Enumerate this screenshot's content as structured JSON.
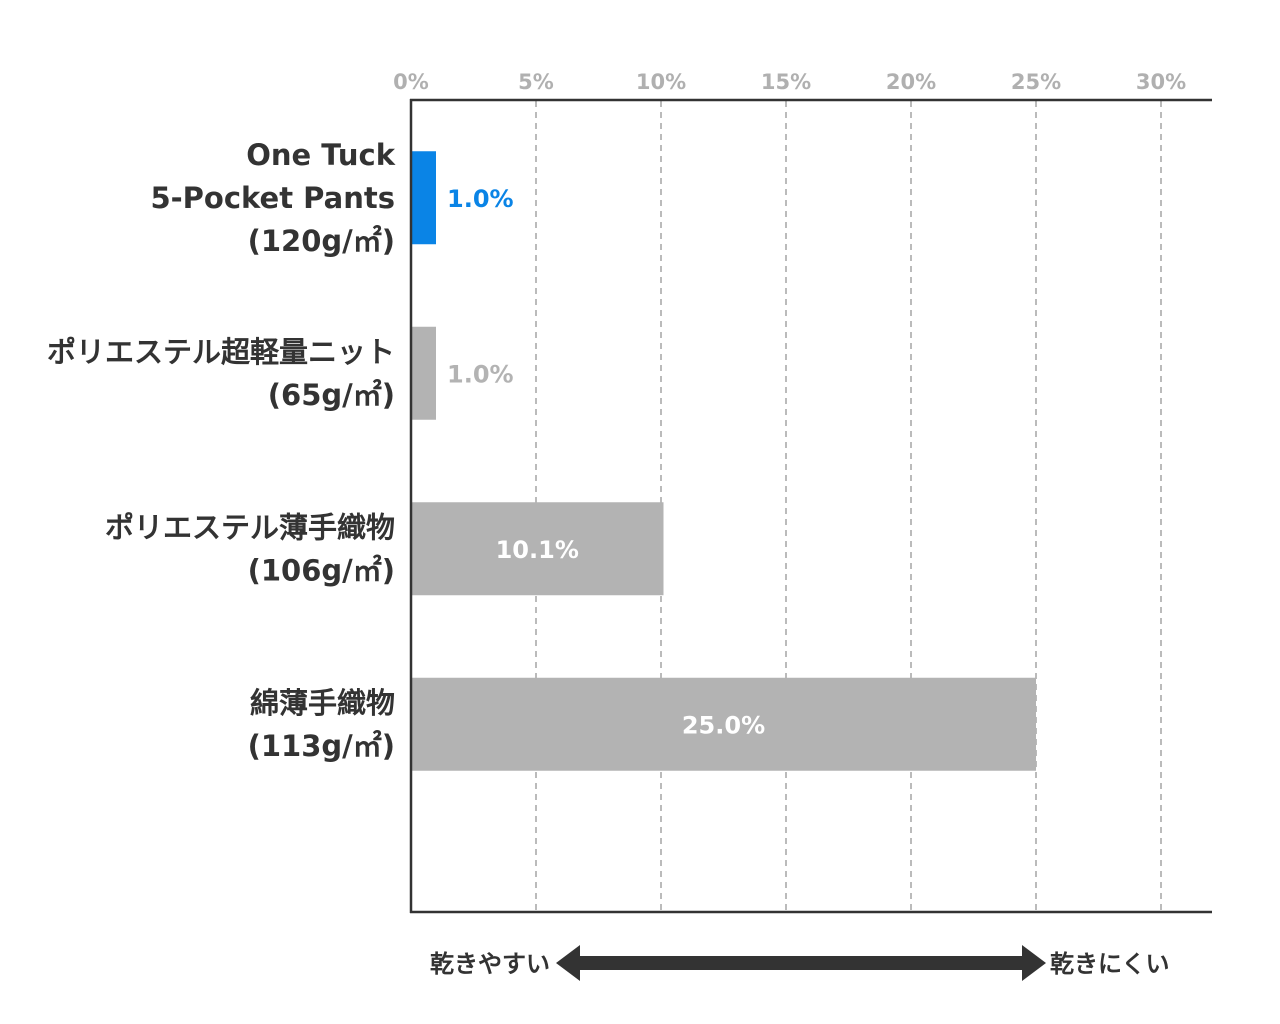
{
  "chart_data": {
    "type": "bar",
    "orientation": "horizontal",
    "categories": [
      {
        "lines": [
          "One Tuck",
          "5-Pocket Pants",
          "(120g/㎡)"
        ],
        "highlight": true
      },
      {
        "lines": [
          "ポリエステル超軽量ニット",
          "(65g/㎡)"
        ],
        "highlight": false
      },
      {
        "lines": [
          "ポリエステル薄手織物",
          "(106g/㎡)"
        ],
        "highlight": false
      },
      {
        "lines": [
          "綿薄手織物",
          "(113g/㎡)"
        ],
        "highlight": false
      }
    ],
    "values": [
      1.0,
      1.0,
      10.1,
      25.0
    ],
    "value_labels": [
      "1.0%",
      "1.0%",
      "10.1%",
      "25.0%"
    ],
    "xlim": [
      0,
      30
    ],
    "ticks": [
      0,
      5,
      10,
      15,
      20,
      25,
      30
    ],
    "tick_labels": [
      "0%",
      "5%",
      "10%",
      "15%",
      "20%",
      "25%",
      "30%"
    ],
    "x_axis_position": "top",
    "grid": true,
    "colors": {
      "highlight": "#0a84e6",
      "default": "#b3b3b3",
      "inside_label": "#ffffff",
      "grid": "#bbbbbb",
      "axis": "#333333"
    },
    "arrow": {
      "left_label": "乾きやすい",
      "right_label": "乾きにくい"
    }
  }
}
